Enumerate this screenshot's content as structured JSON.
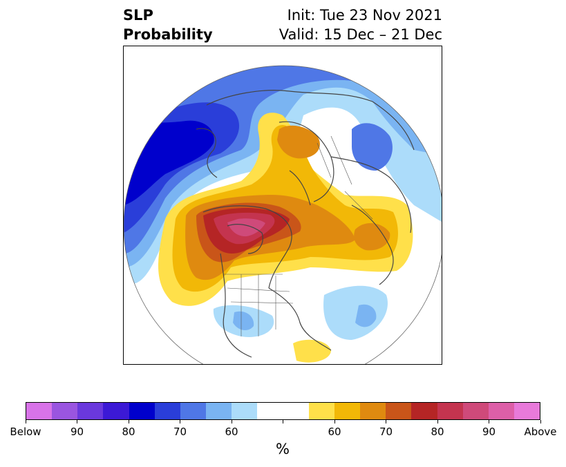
{
  "title": {
    "variable": "SLP",
    "field": "Probability",
    "init": "Init: Tue 23 Nov 2021",
    "valid": "Valid: 15 Dec – 21 Dec"
  },
  "map": {
    "projection": "north polar stereographic",
    "below_region_colors": [
      "#0000cc",
      "#2a3ed9",
      "#4f77e6",
      "#7ab4f2",
      "#acdcfa"
    ],
    "above_region_colors": [
      "#ffe04a",
      "#f2b807",
      "#df8a10",
      "#c95519",
      "#b52525",
      "#c4344f",
      "#cf4a7a"
    ],
    "coastline_color": "#444444"
  },
  "colorbar": {
    "unit": "%",
    "colors": [
      "#d873e8",
      "#9a55e0",
      "#6a38dd",
      "#3c19d6",
      "#0000cc",
      "#2a3ed9",
      "#4f77e6",
      "#7ab4f2",
      "#acdcfa",
      "#ffffff",
      "#ffffff",
      "#ffe04a",
      "#f2b807",
      "#df8a10",
      "#c95519",
      "#b52525",
      "#c4344f",
      "#cf4a7a",
      "#dd5fa8",
      "#e87ada"
    ],
    "tick_labels": [
      "Below",
      "90",
      "80",
      "70",
      "60",
      "",
      "60",
      "70",
      "80",
      "90",
      "Above"
    ]
  }
}
